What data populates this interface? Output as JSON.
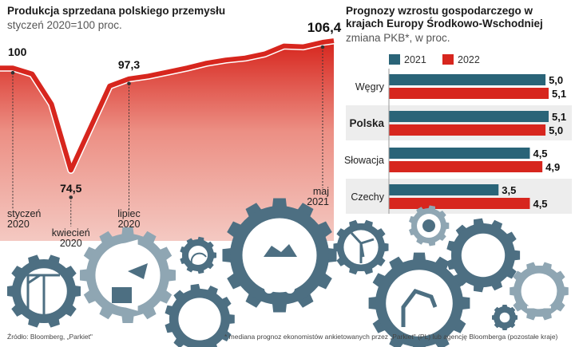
{
  "colors": {
    "red": "#d7261e",
    "pink": "#f4c9c2",
    "blue": "#2a6478",
    "gear": "#4d6f82",
    "gear_light": "#8fa6b3"
  },
  "left_chart": {
    "title": "Produkcja sprzedana polskiego przemysłu",
    "subtitle": "styczeń 2020=100 proc."
  },
  "right_chart": {
    "title": "Prognozy wzrostu gospodarczego w  krajach Europy Środkowo-Wschodniej",
    "subtitle": "zmiana PKB*, w proc."
  },
  "chart_data": [
    {
      "type": "area",
      "title": "Produkcja sprzedana polskiego przemysłu",
      "subtitle": "styczeń 2020=100 proc.",
      "x": [
        "2020-01",
        "2020-02",
        "2020-03",
        "2020-04",
        "2020-05",
        "2020-06",
        "2020-07",
        "2020-08",
        "2020-09",
        "2020-10",
        "2020-11",
        "2020-12",
        "2021-01",
        "2021-02",
        "2021-03",
        "2021-04",
        "2021-05"
      ],
      "values": [
        100,
        98.5,
        91,
        74.5,
        85,
        95.5,
        97.3,
        98,
        99,
        100,
        101.2,
        102,
        102.5,
        103.5,
        105.5,
        105.3,
        106.4
      ],
      "ylim": [
        72,
        108
      ],
      "data_labels": [
        {
          "index": 0,
          "text": "100"
        },
        {
          "index": 3,
          "text": "74,5"
        },
        {
          "index": 6,
          "text": "97,3"
        },
        {
          "index": 16,
          "text": "106,4"
        }
      ],
      "x_annotations": [
        {
          "index": 0,
          "line1": "styczeń",
          "line2": "2020"
        },
        {
          "index": 3,
          "line1": "kwiecień",
          "line2": "2020"
        },
        {
          "index": 6,
          "line1": "lipiec",
          "line2": "2020"
        },
        {
          "index": 16,
          "line1": "maj",
          "line2": "2021"
        }
      ]
    },
    {
      "type": "bar",
      "title": "Prognozy wzrostu gospodarczego w  krajach Europy Środkowo-Wschodniej",
      "subtitle": "zmiana PKB*, w proc.",
      "orientation": "horizontal",
      "categories": [
        "Węgry",
        "Polska",
        "Słowacja",
        "Czechy"
      ],
      "highlight": "Polska",
      "series": [
        {
          "name": "2021",
          "values": [
            5.0,
            5.1,
            4.5,
            3.5
          ],
          "labels": [
            "5,0",
            "5,1",
            "4,5",
            "3,5"
          ]
        },
        {
          "name": "2022",
          "values": [
            5.1,
            5.0,
            4.9,
            4.5
          ],
          "labels": [
            "5,1",
            "5,0",
            "4,9",
            "4,5"
          ]
        }
      ],
      "xlim": [
        0,
        5.1
      ]
    }
  ],
  "footer": {
    "source": "Źródło: Bloomberg, „Parkiet\"",
    "note": "* mediana prognoz ekonomistów ankietowanych przez „Parkiet\" (PL) lub agencję Bloomberga (pozostałe kraje)"
  }
}
